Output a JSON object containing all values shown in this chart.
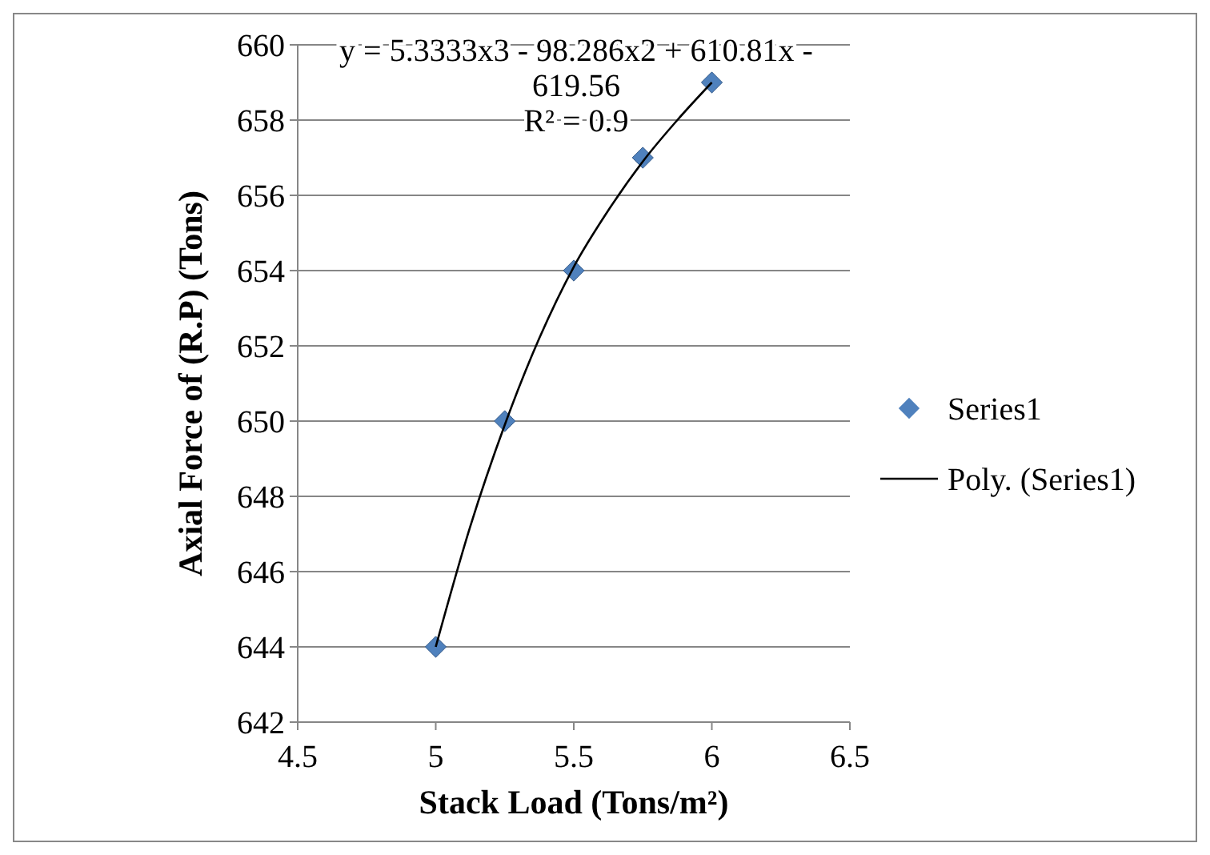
{
  "chart_data": {
    "type": "scatter",
    "xlabel": "Stack Load (Tons/m²)",
    "ylabel": "Axial Force of (R.P) (Tons)",
    "annotations": [
      "y = 5.3333x3 - 98.286x2 + 610.81x - 619.56",
      "R² = 0.9"
    ],
    "xlim": [
      4.5,
      6.5
    ],
    "xticks": [
      4.5,
      5,
      5.5,
      6,
      6.5
    ],
    "ylim": [
      642,
      660
    ],
    "yticks": [
      642,
      644,
      646,
      648,
      650,
      652,
      654,
      656,
      658,
      660
    ],
    "grid": "y",
    "legend": "right",
    "series": [
      {
        "name": "Series1",
        "type": "scatter",
        "color": "#4f81bd",
        "marker": "diamond",
        "x": [
          5,
          5.25,
          5.5,
          5.75,
          6
        ],
        "values": [
          644,
          650,
          654,
          657,
          659
        ]
      },
      {
        "name": "Poly. (Series1)",
        "type": "line",
        "color": "#000000",
        "marker": "none",
        "line_style": "solid",
        "x": [
          5,
          5.125,
          5.25,
          5.375,
          5.5,
          5.625,
          5.75,
          5.875,
          6
        ],
        "values": [
          644.0,
          647.2,
          649.9,
          652.2,
          654.1,
          655.6,
          656.9,
          658.0,
          659.0
        ]
      }
    ]
  }
}
